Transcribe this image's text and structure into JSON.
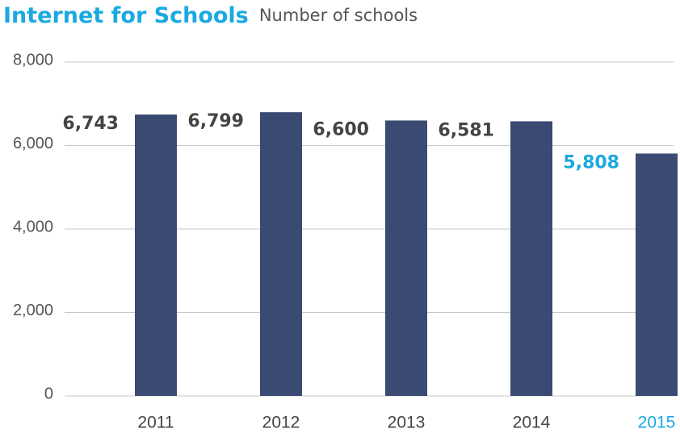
{
  "chart_data": {
    "type": "bar",
    "title": "Internet for Schools",
    "subtitle": "Number of schools",
    "categories": [
      "2011",
      "2012",
      "2013",
      "2014",
      "2015"
    ],
    "values": [
      6743,
      6799,
      6600,
      6581,
      5808
    ],
    "value_labels": [
      "6,743",
      "6,799",
      "6,600",
      "6,581",
      "5,808"
    ],
    "color": "#3b4a72",
    "label_colors": [
      "#444444",
      "#444444",
      "#444444",
      "#444444",
      "#1ba9e1"
    ],
    "ylim": [
      0,
      8000
    ],
    "yticks": [
      0,
      {
        "value": 2000,
        "label": "2,000"
      },
      {
        "value": 4000,
        "label": "4,000"
      },
      {
        "value": 6000,
        "label": "6,000"
      },
      {
        "value": 8000,
        "label": "8,000"
      }
    ],
    "grid": true
  }
}
